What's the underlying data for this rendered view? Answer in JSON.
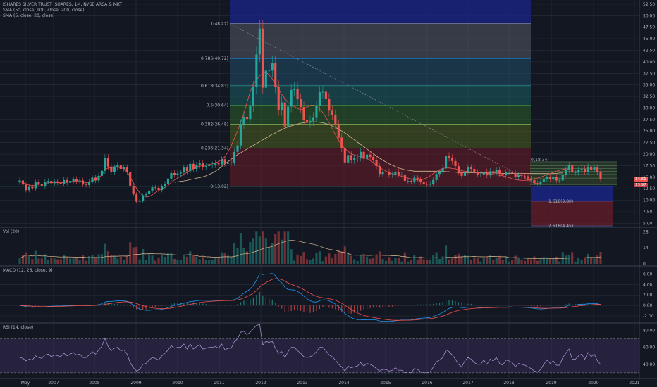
{
  "legend": {
    "symbol": "ISHARES SILVER TRUST ISHARES, 1M, NYSE ARCA & MKT",
    "sma1": "SMA (50, close, 100, close, 200, close)",
    "sma2": "SMA (5, close, 20, close)",
    "vol": "Vol (20)",
    "macd": "MACD (12, 26, close, 9)",
    "rsi": "RSI (14, close)"
  },
  "price_badges": {
    "last": "14.61",
    "prev": "13.97"
  },
  "colors": {
    "up": "#26a69a",
    "down": "#ef5350",
    "bg": "#131722",
    "grid": "#2a2e39",
    "text": "#b2b5be"
  },
  "chart_data": {
    "type": "candlestick",
    "x_ticks": [
      "May",
      "2007",
      "2008",
      "2009",
      "2010",
      "2011",
      "2012",
      "2013",
      "2014",
      "2015",
      "2016",
      "2017",
      "2018",
      "2019",
      "2020",
      "2021"
    ],
    "y_ticks": [
      "52.50",
      "50.00",
      "47.50",
      "45.00",
      "42.50",
      "40.00",
      "37.50",
      "35.00",
      "32.50",
      "30.00",
      "27.50",
      "25.00",
      "22.50",
      "20.00",
      "17.50",
      "15.00",
      "12.50",
      "10.00",
      "7.50",
      "5.00"
    ],
    "ylim": [
      4.3,
      53.4
    ],
    "fib_big": [
      {
        "label": "1(48.27)",
        "value": 48.27
      },
      {
        "label": "0.786(40.72)",
        "value": 40.72
      },
      {
        "label": "0.618(34.83)",
        "value": 34.83
      },
      {
        "label": "0.5(30.64)",
        "value": 30.64
      },
      {
        "label": "0.382(26.48)",
        "value": 26.48
      },
      {
        "label": "0.236(21.34)",
        "value": 21.34
      },
      {
        "label": "0(13.02)",
        "value": 13.02
      }
    ],
    "fib_ext": [
      {
        "label": "1.618(9.80)",
        "value": 9.8
      },
      {
        "label": "2.618(4.45)",
        "value": 4.45
      }
    ],
    "fib_small_label": "0(18.34)",
    "candles": [
      14.3,
      13.4,
      12.2,
      12.9,
      12.6,
      13.9,
      13.5,
      13.1,
      14.0,
      14.2,
      13.7,
      14.1,
      13.8,
      13.5,
      14.4,
      13.8,
      14.2,
      14.6,
      14.1,
      14.3,
      13.4,
      13.3,
      14.0,
      14.9,
      14.3,
      15.3,
      16.4,
      19.2,
      17.3,
      16.2,
      17.1,
      17.6,
      16.8,
      17.1,
      16.1,
      13.1,
      11.3,
      9.7,
      9.9,
      11.1,
      11.3,
      12.1,
      12.8,
      12.7,
      12.2,
      13.0,
      13.6,
      14.7,
      15.9,
      15.5,
      15.8,
      16.0,
      17.1,
      16.3,
      17.9,
      16.8,
      17.6,
      18.0,
      17.2,
      17.4,
      17.6,
      17.7,
      18.0,
      17.8,
      18.9,
      17.9,
      18.2,
      18.2,
      20.5,
      21.9,
      26.5,
      28.1,
      27.6,
      30.4,
      34.5,
      41.6,
      47.2,
      34.4,
      38.1,
      38.1,
      39.8,
      34.6,
      29.5,
      31.2,
      26.0,
      30.3,
      33.9,
      34.2,
      31.9,
      30.2,
      27.4,
      26.8,
      27.2,
      28.0,
      30.4,
      33.4,
      33.5,
      31.9,
      29.4,
      28.5,
      26.4,
      23.6,
      21.3,
      18.2,
      19.8,
      18.7,
      19.1,
      19.2,
      20.5,
      19.0,
      19.9,
      19.4,
      18.7,
      17.4,
      15.7,
      16.1,
      16.2,
      15.5,
      15.6,
      16.2,
      15.6,
      15.6,
      14.2,
      14.2,
      14.0,
      14.9,
      14.6,
      13.9,
      13.6,
      13.4,
      13.6,
      14.4,
      15.7,
      16.1,
      16.9,
      19.6,
      19.2,
      18.5,
      17.4,
      16.1,
      15.3,
      16.2,
      17.1,
      16.8,
      16.1,
      15.6,
      15.6,
      16.2,
      15.4,
      16.3,
      16.0,
      16.6,
      15.7,
      15.4,
      16.1,
      16.1,
      15.9,
      15.0,
      15.5,
      15.3,
      15.2,
      14.7,
      14.4,
      13.7,
      13.6,
      13.9,
      14.5,
      15.1,
      14.6,
      15.0,
      14.3,
      14.3,
      15.6,
      16.5,
      17.6,
      16.0,
      16.0,
      16.6,
      16.8,
      16.1,
      17.3,
      16.6,
      17.1,
      16.1,
      14.6
    ],
    "fast_sma": [
      14.1,
      13.8,
      13.5,
      13.3,
      13.2,
      13.3,
      13.5,
      13.5,
      13.6,
      13.8,
      13.8,
      13.9,
      13.8,
      13.8,
      13.9,
      13.9,
      14.0,
      14.1,
      14.2,
      14.2,
      14.0,
      13.8,
      13.9,
      14.2,
      14.4,
      14.8,
      15.5,
      16.6,
      17.0,
      17.0,
      17.3,
      17.2,
      17.0,
      16.9,
      16.2,
      15.0,
      13.8,
      12.6,
      11.6,
      11.0,
      10.8,
      10.8,
      11.2,
      11.7,
      12.1,
      12.5,
      12.8,
      13.2,
      13.9,
      14.4,
      14.8,
      15.2,
      15.7,
      16.0,
      16.5,
      16.8,
      17.2,
      17.4,
      17.5,
      17.6,
      17.8,
      17.9,
      18.1,
      18.4,
      18.8,
      19.5,
      20.5,
      21.8,
      23.4,
      25.0,
      26.9,
      28.8,
      31.2,
      33.5,
      35.2,
      36.1,
      37.0,
      37.5,
      37.8,
      37.1,
      36.3,
      35.1,
      34.1,
      32.9,
      32.0,
      31.2,
      30.7,
      30.3,
      29.9,
      29.6,
      29.8,
      30.2,
      30.5,
      30.6,
      30.3,
      29.8,
      29.0,
      28.0,
      26.8,
      25.5,
      24.2,
      23.0,
      22.0,
      21.2,
      20.6,
      20.1,
      19.8,
      19.6,
      19.5,
      19.3,
      19.0,
      18.6,
      18.1,
      17.6,
      17.1,
      16.7,
      16.3,
      16.0,
      15.8,
      15.6,
      15.4,
      15.2,
      15.0,
      14.8,
      14.6,
      14.5,
      14.4,
      14.4,
      14.6,
      14.9,
      15.3,
      15.8,
      16.2,
      16.6,
      16.9,
      17.0,
      17.0,
      16.9,
      16.8,
      16.6,
      16.4,
      16.3,
      16.2,
      16.2,
      16.1,
      16.0,
      15.9,
      15.9,
      15.8,
      15.7,
      15.6,
      15.5,
      15.4,
      15.3,
      15.1,
      14.9,
      14.7,
      14.5,
      14.4,
      14.3,
      14.3,
      14.4,
      14.5,
      14.6,
      14.8,
      15.0,
      15.3,
      15.6,
      15.8,
      16.0,
      16.3,
      16.5,
      16.7,
      16.8,
      16.7
    ],
    "slow_sma": [
      null,
      null,
      null,
      null,
      null,
      null,
      null,
      null,
      null,
      null,
      null,
      null,
      null,
      null,
      null,
      null,
      null,
      null,
      null,
      null,
      null,
      null,
      null,
      null,
      null,
      null,
      null,
      null,
      null,
      null,
      null,
      null,
      null,
      null,
      null,
      null,
      null,
      null,
      null,
      null,
      null,
      null,
      null,
      null,
      null,
      null,
      null,
      null,
      null,
      13.9,
      14.0,
      14.1,
      14.2,
      14.3,
      14.5,
      14.6,
      14.8,
      14.9,
      15.1,
      15.3,
      15.6,
      15.9,
      16.3,
      16.8,
      17.3,
      17.9,
      18.4,
      18.9,
      19.4,
      19.9,
      20.3,
      20.7,
      21.1,
      21.5,
      21.9,
      22.3,
      22.7,
      23.1,
      23.5,
      23.9,
      24.3,
      24.6,
      25.0,
      25.3,
      25.6,
      25.9,
      26.1,
      26.3,
      26.5,
      26.7,
      26.8,
      26.9,
      27.0,
      27.0,
      27.0,
      26.9,
      26.8,
      26.6,
      26.4,
      26.1,
      25.8,
      25.4,
      25.0,
      24.6,
      24.1,
      23.6,
      23.1,
      22.6,
      22.1,
      21.6,
      21.1,
      20.6,
      20.1,
      19.6,
      19.1,
      18.7,
      18.3,
      17.9,
      17.6,
      17.3,
      17.0,
      16.8,
      16.6,
      16.5,
      16.4,
      16.3,
      16.3,
      16.3,
      16.3,
      16.3,
      16.3,
      16.3,
      16.3,
      16.3,
      16.3,
      16.2,
      16.2,
      16.1,
      16.1,
      16.0,
      16.0,
      16.0,
      16.0,
      16.0,
      16.0,
      16.0,
      16.0,
      16.0,
      15.9,
      15.9,
      15.9,
      15.9,
      15.8,
      15.8,
      15.8,
      15.8,
      15.8,
      15.8,
      15.8,
      15.8,
      15.8,
      15.8,
      15.8,
      15.8,
      15.8,
      15.8,
      15.8,
      15.8,
      15.8,
      15.8,
      15.8,
      15.9,
      15.9
    ],
    "vol_ticks": [
      "28",
      "14",
      "0"
    ],
    "macd_ticks": [
      "6.00",
      "4.00",
      "2.00",
      "0.00",
      "-2.00"
    ],
    "macd_ylim": [
      -3.2,
      7.4
    ],
    "rsi_ticks": [
      "80.00",
      "60.00",
      "40.00"
    ],
    "rsi_ylim": [
      24,
      88
    ],
    "rsi_levels": [
      70,
      30
    ],
    "rsi": [
      48,
      47,
      44,
      46,
      45,
      50,
      48,
      47,
      51,
      52,
      49,
      51,
      50,
      49,
      53,
      50,
      52,
      54,
      51,
      52,
      48,
      48,
      51,
      55,
      52,
      57,
      61,
      71,
      61,
      56,
      59,
      60,
      56,
      57,
      52,
      42,
      36,
      32,
      34,
      40,
      41,
      45,
      48,
      47,
      45,
      50,
      53,
      57,
      62,
      59,
      60,
      60,
      64,
      58,
      64,
      58,
      61,
      63,
      58,
      59,
      60,
      60,
      61,
      59,
      64,
      57,
      59,
      59,
      67,
      70,
      78,
      79,
      75,
      78,
      82,
      86,
      87,
      63,
      67,
      66,
      67,
      59,
      53,
      55,
      48,
      55,
      60,
      60,
      56,
      53,
      49,
      48,
      49,
      51,
      55,
      60,
      60,
      56,
      51,
      49,
      45,
      40,
      37,
      32,
      38,
      36,
      37,
      38,
      42,
      38,
      41,
      40,
      38,
      35,
      32,
      34,
      34,
      32,
      33,
      36,
      33,
      33,
      30,
      31,
      30,
      35,
      34,
      31,
      30,
      30,
      31,
      37,
      43,
      45,
      48,
      57,
      55,
      51,
      46,
      40,
      37,
      44,
      48,
      46,
      42,
      40,
      40,
      45,
      40,
      46,
      44,
      48,
      41,
      39,
      45,
      44,
      42,
      37,
      41,
      40,
      39,
      37,
      35,
      32,
      31,
      34,
      40,
      45,
      41,
      44,
      39,
      39,
      48,
      53,
      58,
      46,
      46,
      50,
      52,
      46,
      54,
      49,
      52,
      44,
      40
    ]
  }
}
